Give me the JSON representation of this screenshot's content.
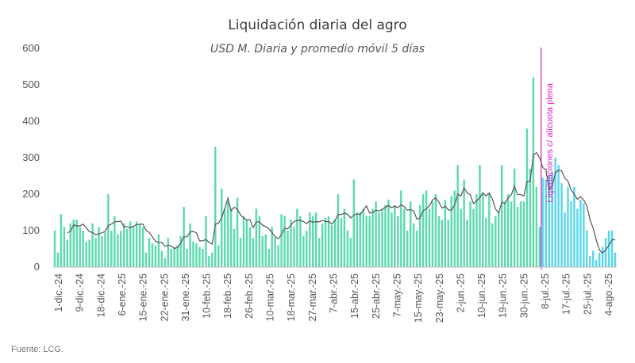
{
  "chart_data": {
    "type": "bar",
    "title": "Liquidación diaria del agro",
    "subtitle": "USD M. Diaria y promedio móvil 5 días",
    "source": "Fuente: LCG.",
    "ylim": [
      0,
      600
    ],
    "yticks": [
      0,
      100,
      200,
      300,
      400,
      500,
      600
    ],
    "xticks": [
      "1-dic.-24",
      "9-dic.-24",
      "18-dic.-24",
      "6-ene.-25",
      "15-ene.-25",
      "22-ene.-25",
      "31-ene.-25",
      "10-feb.-25",
      "18-feb.-25",
      "26-feb.-25",
      "10-mar.-25",
      "18-mar.-25",
      "27-mar.-25",
      "7-abr.-25",
      "15-abr.-25",
      "25-abr.-25",
      "7-may.-25",
      "15-may.-25",
      "23-may.-25",
      "2-jun.-25",
      "10-jun.-25",
      "19-jun.-25",
      "30-jun.-25",
      "8-jul.-25",
      "17-jul.-25",
      "25-jul.-25",
      "4-ago.-25"
    ],
    "annotation": {
      "label": "Liquidaciones c/ alícuota plena",
      "at_index": 154
    },
    "colors": {
      "bars": "#5dd9b0",
      "bars_after": "#5ad6ea",
      "line": "#555555",
      "annotation": "#e020c8"
    },
    "series": [
      {
        "name": "Liquidación diaria",
        "type": "bar",
        "values": [
          100,
          40,
          145,
          110,
          75,
          120,
          130,
          130,
          110,
          100,
          70,
          75,
          120,
          80,
          110,
          85,
          95,
          200,
          100,
          140,
          90,
          100,
          120,
          105,
          125,
          110,
          125,
          120,
          110,
          40,
          80,
          65,
          60,
          90,
          45,
          25,
          80,
          50,
          55,
          60,
          85,
          165,
          50,
          120,
          70,
          65,
          55,
          50,
          140,
          30,
          40,
          330,
          60,
          215,
          160,
          180,
          160,
          105,
          190,
          80,
          140,
          130,
          110,
          80,
          160,
          140,
          85,
          90,
          50,
          110,
          80,
          60,
          145,
          140,
          100,
          130,
          110,
          160,
          140,
          85,
          100,
          150,
          140,
          150,
          80,
          120,
          135,
          140,
          115,
          130,
          200,
          135,
          160,
          100,
          80,
          240,
          150,
          150,
          160,
          140,
          140,
          160,
          180,
          150,
          160,
          170,
          185,
          150,
          170,
          140,
          210,
          160,
          100,
          180,
          120,
          100,
          170,
          200,
          210,
          160,
          180,
          200,
          140,
          130,
          185,
          130,
          195,
          210,
          280,
          160,
          240,
          130,
          180,
          160,
          200,
          280,
          200,
          135,
          200,
          120,
          140,
          150,
          280,
          180,
          200,
          180,
          270,
          165,
          180,
          180,
          380,
          270,
          520,
          220,
          110
        ],
        "after_values": [
          245,
          240,
          250,
          260,
          300,
          280,
          230,
          150,
          220,
          180,
          220,
          160,
          185,
          175,
          100,
          30,
          45,
          20,
          40,
          55,
          80,
          100,
          100,
          40
        ]
      }
    ]
  }
}
